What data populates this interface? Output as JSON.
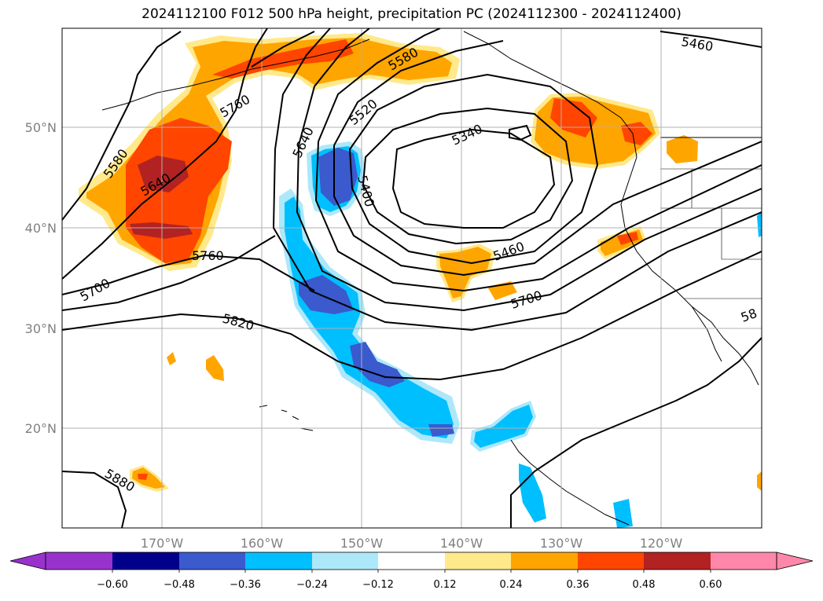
{
  "title": "2024112100 F012 500 hPa height, precipitation PC (2024112300 - 2024112400)",
  "lat_labels": [
    "50°N",
    "40°N",
    "30°N",
    "20°N"
  ],
  "lon_labels": [
    "170°W",
    "160°W",
    "150°W",
    "140°W",
    "130°W",
    "120°W"
  ],
  "contour_labels": [
    "5460",
    "5580",
    "5520",
    "5340",
    "5640",
    "5400",
    "5760",
    "5580",
    "5640",
    "5760",
    "5700",
    "5820",
    "5460",
    "5700",
    "5880",
    "58"
  ],
  "colorbar": {
    "tick_labels": [
      "−0.60",
      "−0.48",
      "−0.36",
      "−0.24",
      "−0.12",
      "0.12",
      "0.24",
      "0.36",
      "0.48",
      "0.60"
    ],
    "colors": [
      "#9932cc",
      "#00008b",
      "#3a5acd",
      "#00bfff",
      "#ade8fa",
      "#ffffff",
      "#ffe98a",
      "#ffa500",
      "#ff4500",
      "#b22222",
      "#ff88aa"
    ]
  },
  "colors": {
    "pos_weak": "#ffe98a",
    "pos_1": "#ffa500",
    "pos_2": "#ff4500",
    "pos_3": "#b22222",
    "neg_1": "#ade8fa",
    "neg_2": "#00bfff",
    "neg_3": "#3a5acd"
  }
}
